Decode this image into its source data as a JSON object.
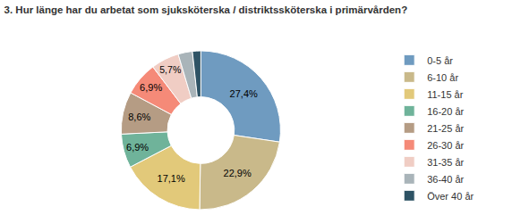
{
  "chart_data": {
    "type": "pie",
    "title": "3. Hur länge har du arbetat som sjuksköterska / distriktssköterska i primärvården?",
    "categories": [
      "0-5 år",
      "6-10 år",
      "11-15 år",
      "16-20 år",
      "21-25 år",
      "26-30 år",
      "31-35 år",
      "36-40 år",
      "Över 40 år"
    ],
    "values": [
      27.4,
      22.9,
      17.1,
      6.9,
      8.6,
      6.9,
      5.7,
      2.9,
      1.7
    ],
    "value_labels": [
      "27,4%",
      "22,9%",
      "17,1%",
      "6,9%",
      "8,6%",
      "6,9%",
      "5,7%",
      null,
      null
    ],
    "data_labels": true,
    "colors": [
      "#6f9bc0",
      "#c9b98a",
      "#e2c97a",
      "#6fb39a",
      "#b59c84",
      "#f58a78",
      "#f0cdc4",
      "#a9b4b9",
      "#2e5365"
    ],
    "legend": "right"
  }
}
